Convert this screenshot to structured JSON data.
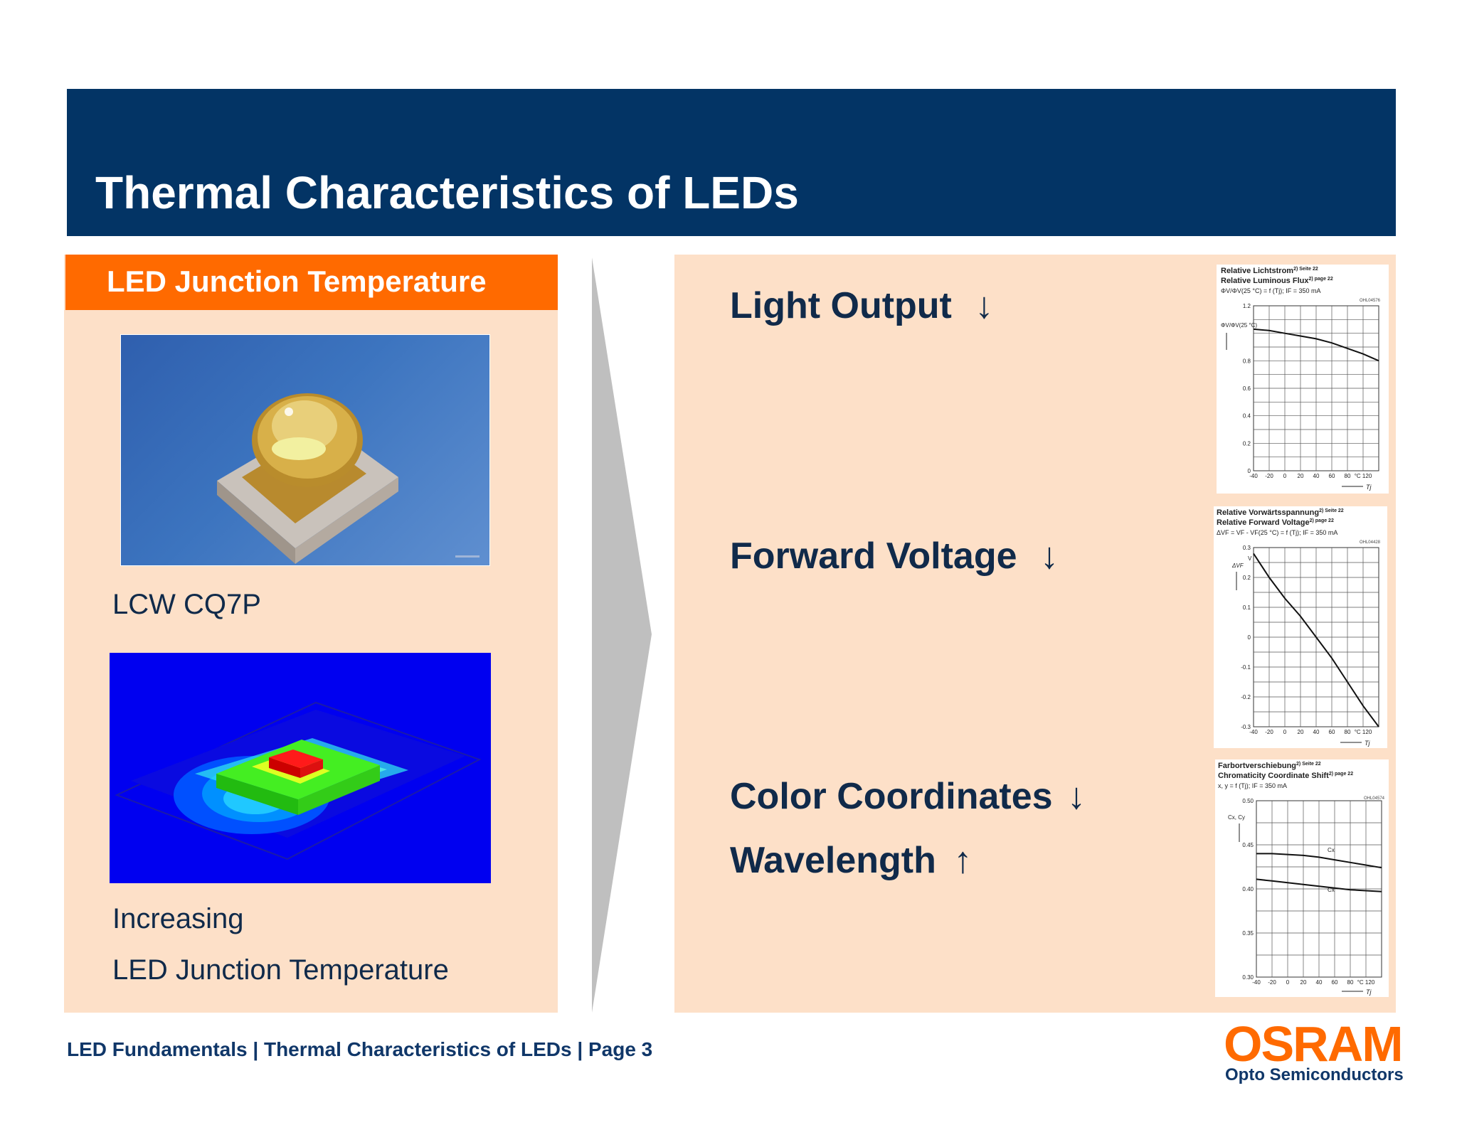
{
  "slide": {
    "title": "Thermal Characteristics of LEDs"
  },
  "left": {
    "heading": "LED Junction Temperature",
    "product_label": "LCW  CQ7P",
    "caption_line1": "Increasing",
    "caption_line2": "LED Junction Temperature"
  },
  "right": {
    "items": [
      {
        "label": "Light Output",
        "arrow": "↓"
      },
      {
        "label": "Forward Voltage",
        "arrow": "↓"
      },
      {
        "label": "Color Coordinates",
        "arrow": "↓"
      },
      {
        "label": "Wavelength",
        "arrow": "↑"
      }
    ]
  },
  "charts": {
    "luminous": {
      "title_de": "Relative Lichtstrom",
      "title_de_note": "2) Seite 22",
      "title_en": "Relative Luminous Flux",
      "title_en_note": "2) page 22",
      "formula": "ΦV/ΦV(25 °C) = f (Tj); IF = 350 mA",
      "code": "OHL04576",
      "ylabel": "ΦV/ΦV(25 °C)",
      "xlabel": "Tj",
      "yticks": [
        "1.2",
        "0.8",
        "0.6",
        "0.4",
        "0.2",
        "0"
      ],
      "xticks": [
        "-40",
        "-20",
        "0",
        "20",
        "40",
        "60",
        "80",
        "°C 120"
      ]
    },
    "voltage": {
      "title_de": "Relative Vorwärtsspannung",
      "title_de_note": "2) Seite 22",
      "title_en": "Relative Forward Voltage",
      "title_en_note": "2) page 22",
      "formula": "ΔVF = VF - VF(25 °C) = f (Tj); IF = 350 mA",
      "code": "OHL04428",
      "ylabel": "ΔVF",
      "yunit": "V",
      "xlabel": "Tj",
      "yticks": [
        "0.3",
        "0.2",
        "0.1",
        "0",
        "-0.1",
        "-0.2",
        "-0.3"
      ],
      "xticks": [
        "-40",
        "-20",
        "0",
        "20",
        "40",
        "60",
        "80",
        "°C 120"
      ]
    },
    "chroma": {
      "title_de": "Farbortverschiebung",
      "title_de_note": "2) Seite 22",
      "title_en": "Chromaticity Coordinate Shift",
      "title_en_note": "2) page 22",
      "formula": "x, y = f (Tj); IF = 350 mA",
      "code": "OHL04574",
      "ylabel": "Cx, Cy",
      "xlabel": "Tj",
      "yticks": [
        "0.50",
        "0.45",
        "0.40",
        "0.35",
        "0.30"
      ],
      "xticks": [
        "-40",
        "-20",
        "0",
        "20",
        "40",
        "60",
        "80",
        "°C 120"
      ],
      "curve_label1": "Cx",
      "curve_label2": "Cx"
    }
  },
  "chart_data": [
    {
      "type": "line",
      "x": [
        -40,
        -20,
        0,
        20,
        40,
        60,
        80,
        100,
        120
      ],
      "values": [
        1.03,
        1.02,
        1.0,
        0.98,
        0.96,
        0.93,
        0.89,
        0.85,
        0.8
      ],
      "ylim": [
        0,
        1.2
      ],
      "xlim": [
        -40,
        120
      ]
    },
    {
      "type": "line",
      "x": [
        -40,
        -20,
        0,
        20,
        40,
        60,
        80,
        100,
        120
      ],
      "values": [
        0.28,
        0.2,
        0.13,
        0.07,
        0.0,
        -0.07,
        -0.15,
        -0.23,
        -0.3
      ],
      "ylim": [
        -0.3,
        0.3
      ],
      "xlim": [
        -40,
        120
      ]
    },
    {
      "type": "line",
      "x": [
        -40,
        -20,
        0,
        20,
        40,
        60,
        80,
        100,
        120
      ],
      "series": [
        {
          "values": [
            0.44,
            0.44,
            0.439,
            0.438,
            0.436,
            0.433,
            0.43,
            0.427,
            0.424
          ]
        },
        {
          "values": [
            0.411,
            0.409,
            0.407,
            0.405,
            0.403,
            0.401,
            0.399,
            0.398,
            0.397
          ]
        }
      ],
      "ylim": [
        0.3,
        0.5
      ],
      "xlim": [
        -40,
        120
      ]
    }
  ],
  "footer": {
    "text": "LED Fundamentals  |  Thermal Characteristics of LEDs  |  Page 3",
    "brand": "OSRAM",
    "brand_sub": "Opto Semiconductors"
  },
  "colors": {
    "header": "#033465",
    "accent": "#ff6a00",
    "panel": "#fde0c8",
    "text": "#102a4a"
  }
}
